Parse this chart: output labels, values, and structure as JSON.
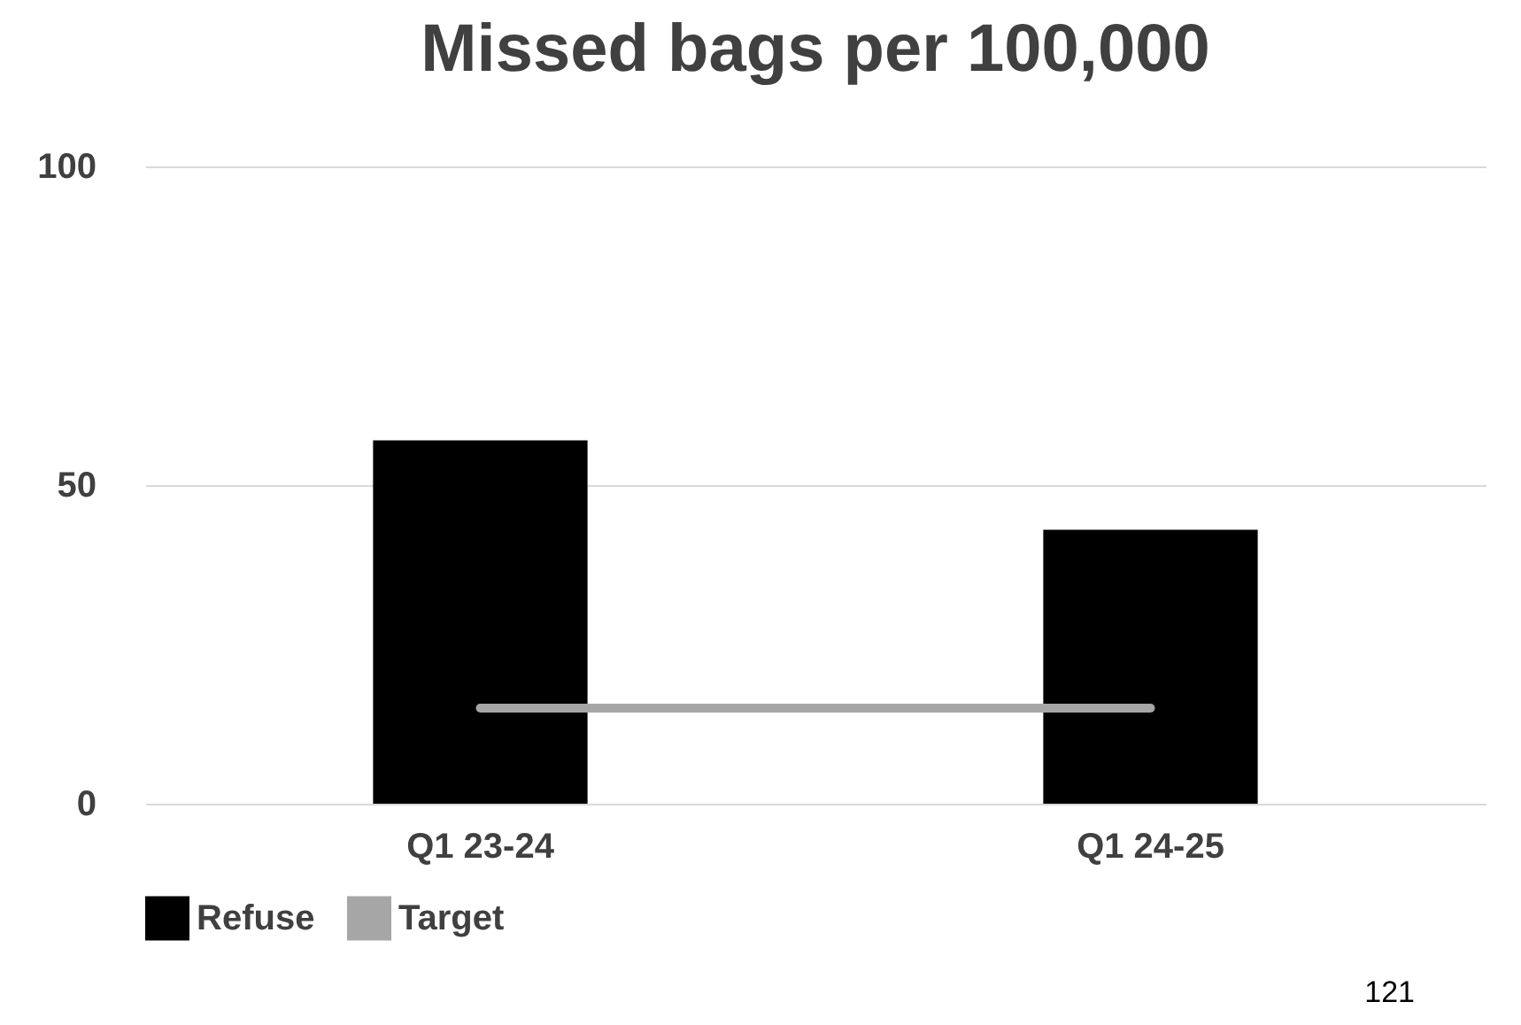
{
  "chart_data": {
    "type": "bar",
    "title": "Missed bags per 100,000",
    "categories": [
      "Q1 23-24",
      "Q1 24-25"
    ],
    "series": [
      {
        "name": "Refuse",
        "color": "#000000",
        "values": [
          57,
          43
        ]
      },
      {
        "name": "Target",
        "type": "line",
        "color": "#a6a6a6",
        "values": [
          15,
          15
        ]
      }
    ],
    "ylim": [
      0,
      100
    ],
    "yticks": [
      0,
      50,
      100
    ],
    "grid": "y",
    "legend": "bottom",
    "annotations": [
      "121"
    ]
  }
}
